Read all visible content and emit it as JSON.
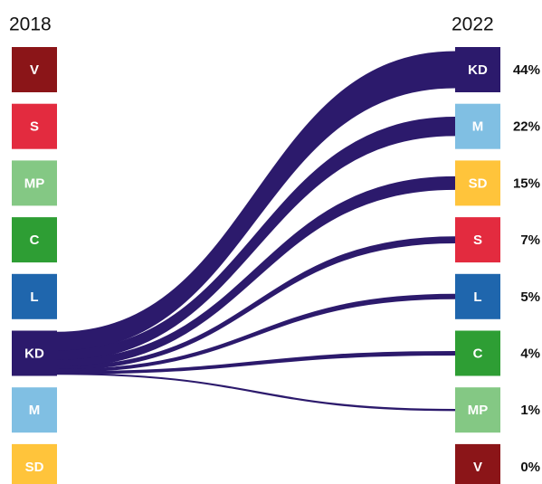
{
  "chart_data": {
    "type": "sankey",
    "left": {
      "label": "2018",
      "categories": [
        "V",
        "S",
        "MP",
        "C",
        "L",
        "KD",
        "M",
        "SD"
      ],
      "colors": [
        "#8b1518",
        "#e32b3f",
        "#84c884",
        "#2e9e34",
        "#1f66ad",
        "#2c1a6c",
        "#80bfe3",
        "#ffc43b"
      ]
    },
    "right": {
      "label": "2022",
      "categories": [
        "KD",
        "M",
        "SD",
        "S",
        "L",
        "C",
        "MP",
        "V"
      ],
      "colors": [
        "#2c1a6c",
        "#80bfe3",
        "#ffc43b",
        "#e32b3f",
        "#1f66ad",
        "#2e9e34",
        "#84c884",
        "#8b1518"
      ]
    },
    "flow_from": "KD",
    "flow_color": "#2c1a6c",
    "values": [
      44,
      22,
      15,
      7,
      5,
      4,
      1,
      0
    ],
    "value_labels": [
      "44%",
      "22%",
      "15%",
      "7%",
      "5%",
      "4%",
      "1%",
      "0%"
    ]
  }
}
